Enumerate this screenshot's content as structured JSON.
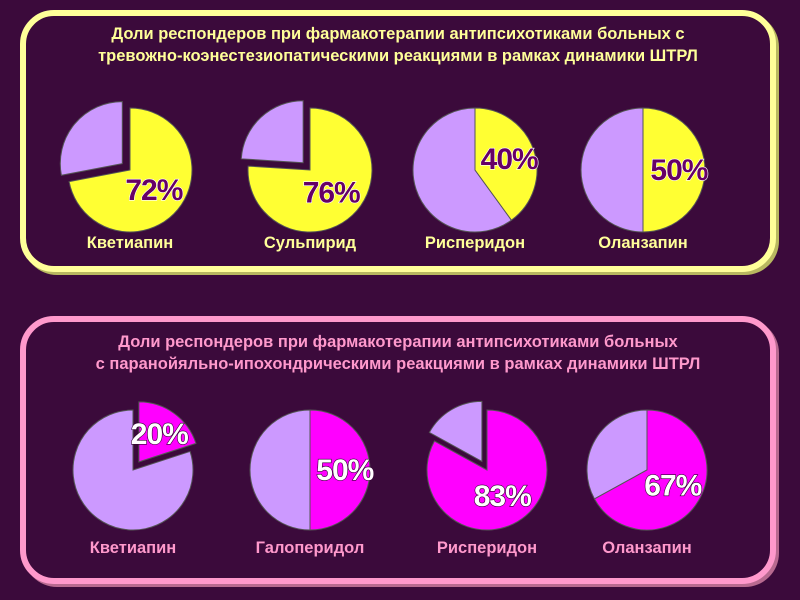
{
  "chart_data": [
    {
      "type": "pie",
      "title": "Доли респондеров при фармакотерапии антипсихотиками больных с тревожно-коэнестезиопатическими реакциями в рамках динамики ШТРЛ",
      "title_lines": [
        "Доли респондеров при фармакотерапии антипсихотиками больных с",
        "тревожно-коэнестезиопатическими реакциями в рамках динамики ШТРЛ"
      ],
      "categories": [
        "Кветиапин",
        "Сульпирид",
        "Рисперидон",
        "Оланзапин"
      ],
      "values": [
        72,
        76,
        40,
        50
      ],
      "labels": [
        "72%",
        "76%",
        "40%",
        "50%"
      ],
      "highlight_color": "#ffff33",
      "rest_color": "#cc99ff",
      "text_color": "#ffff99",
      "pct_color": "#660066",
      "pct_stroke": "#ffffff"
    },
    {
      "type": "pie",
      "title": "Доли респондеров при фармакотерапии антипсихотиками больных с паранойяльно-ипохондрическими реакциями в рамках динамики ШТРЛ",
      "title_lines": [
        "Доли респондеров при фармакотерапии антипсихотиками больных",
        "с паранойяльно-ипохондрическими реакциями в рамках динамики ШТРЛ"
      ],
      "categories": [
        "Кветиапин",
        "Галоперидол",
        "Рисперидон",
        "Оланзапин"
      ],
      "values": [
        20,
        50,
        83,
        67
      ],
      "labels": [
        "20%",
        "50%",
        "83%",
        "67%"
      ],
      "highlight_color": "#ff00ff",
      "rest_color": "#cc99ff",
      "text_color": "#ff99cc",
      "pct_color": "#ffffff",
      "pct_stroke": "#330033"
    }
  ]
}
